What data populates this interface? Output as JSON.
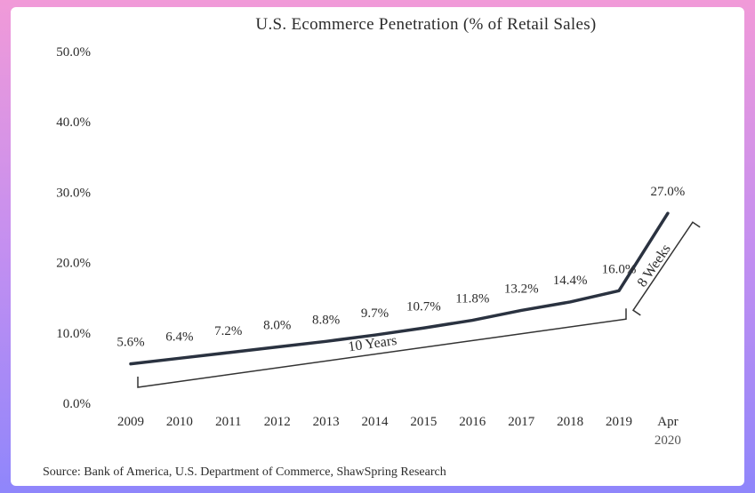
{
  "chart_data": {
    "type": "line",
    "title": "U.S. Ecommerce Penetration (% of Retail Sales)",
    "xlabel": "",
    "ylabel": "",
    "categories": [
      "2009",
      "2010",
      "2011",
      "2012",
      "2013",
      "2014",
      "2015",
      "2016",
      "2017",
      "2018",
      "2019",
      "Apr 2020"
    ],
    "category_lines": [
      [
        "2009"
      ],
      [
        "2010"
      ],
      [
        "2011"
      ],
      [
        "2012"
      ],
      [
        "2013"
      ],
      [
        "2014"
      ],
      [
        "2015"
      ],
      [
        "2016"
      ],
      [
        "2017"
      ],
      [
        "2018"
      ],
      [
        "2019"
      ],
      [
        "Apr",
        "2020"
      ]
    ],
    "series": [
      {
        "name": "U.S. Ecommerce Penetration",
        "values": [
          5.6,
          6.4,
          7.2,
          8.0,
          8.8,
          9.7,
          10.7,
          11.8,
          13.2,
          14.4,
          16.0,
          27.0
        ],
        "labels": [
          "5.6%",
          "6.4%",
          "7.2%",
          "8.0%",
          "8.8%",
          "9.7%",
          "10.7%",
          "11.8%",
          "13.2%",
          "14.4%",
          "16.0%",
          "27.0%"
        ]
      }
    ],
    "ylim": [
      0,
      50
    ],
    "yticks": [
      0,
      10,
      20,
      30,
      40,
      50
    ],
    "ytick_labels": [
      "0.0%",
      "10.0%",
      "20.0%",
      "30.0%",
      "40.0%",
      "50.0%"
    ],
    "grid": false,
    "legend": "none",
    "annotations": [
      {
        "text": "10 Years",
        "from": "2009",
        "to": "2019"
      },
      {
        "text": "8 Weeks",
        "from": "2019",
        "to": "Apr 2020"
      }
    ],
    "line_color": "#2a3240"
  },
  "source": "Source: Bank of America, U.S. Department of Commerce, ShawSpring Research"
}
